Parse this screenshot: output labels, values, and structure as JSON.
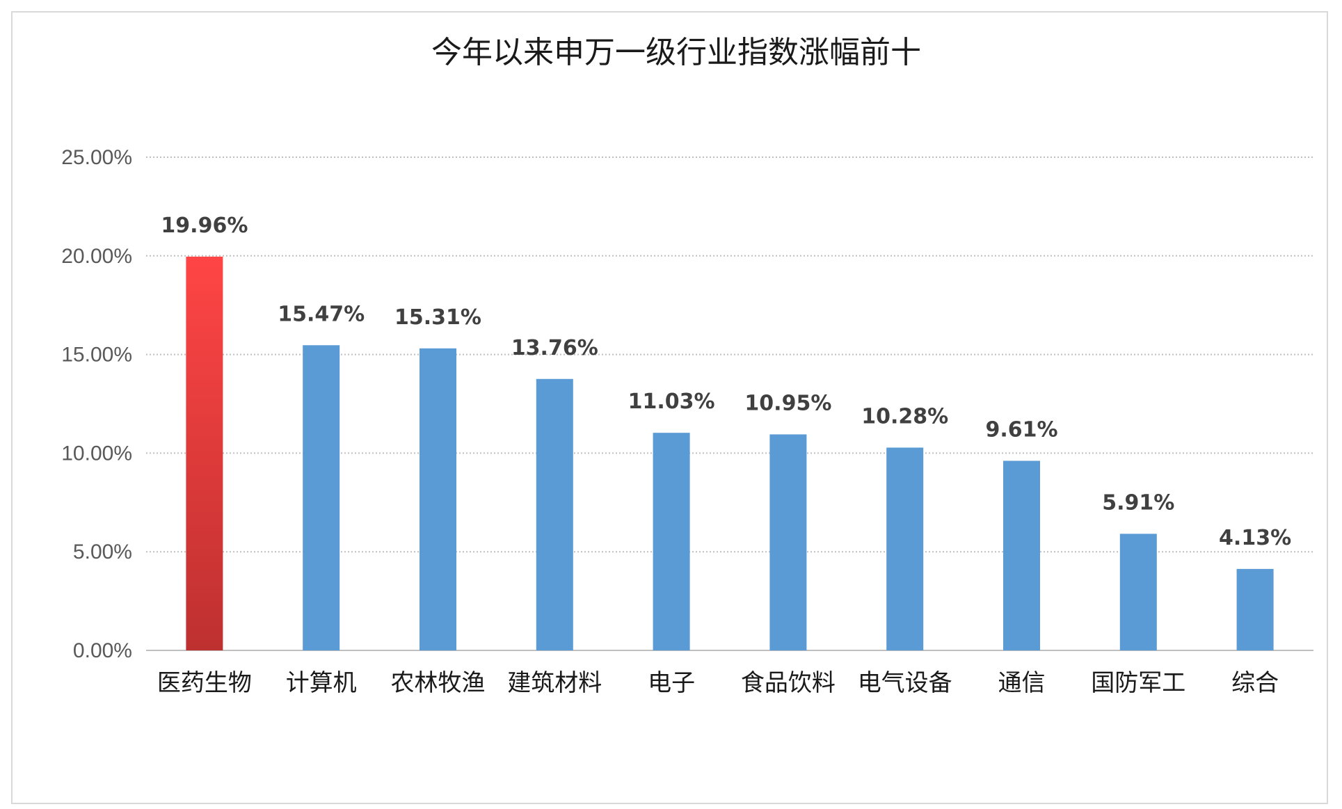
{
  "chart_data": {
    "type": "bar",
    "title": "今年以来申万一级行业指数涨幅前十",
    "xlabel": "",
    "ylabel": "",
    "categories": [
      "医药生物",
      "计算机",
      "农林牧渔",
      "建筑材料",
      "电子",
      "食品饮料",
      "电气设备",
      "通信",
      "国防军工",
      "综合"
    ],
    "values": [
      19.96,
      15.47,
      15.31,
      13.76,
      11.03,
      10.95,
      10.28,
      9.61,
      5.91,
      4.13
    ],
    "data_labels": [
      "19.96%",
      "15.47%",
      "15.31%",
      "13.76%",
      "11.03%",
      "10.95%",
      "10.28%",
      "9.61%",
      "5.91%",
      "4.13%"
    ],
    "ylim": [
      0,
      25
    ],
    "yticks": [
      0,
      5,
      10,
      15,
      20,
      25
    ],
    "ytick_labels": [
      "0.00%",
      "5.00%",
      "10.00%",
      "15.00%",
      "20.00%",
      "25.00%"
    ],
    "grid": true,
    "legend": "none",
    "colors": {
      "highlight_top": "#ff4545",
      "highlight_bottom": "#be3030",
      "bar": "#5b9bd5"
    }
  }
}
